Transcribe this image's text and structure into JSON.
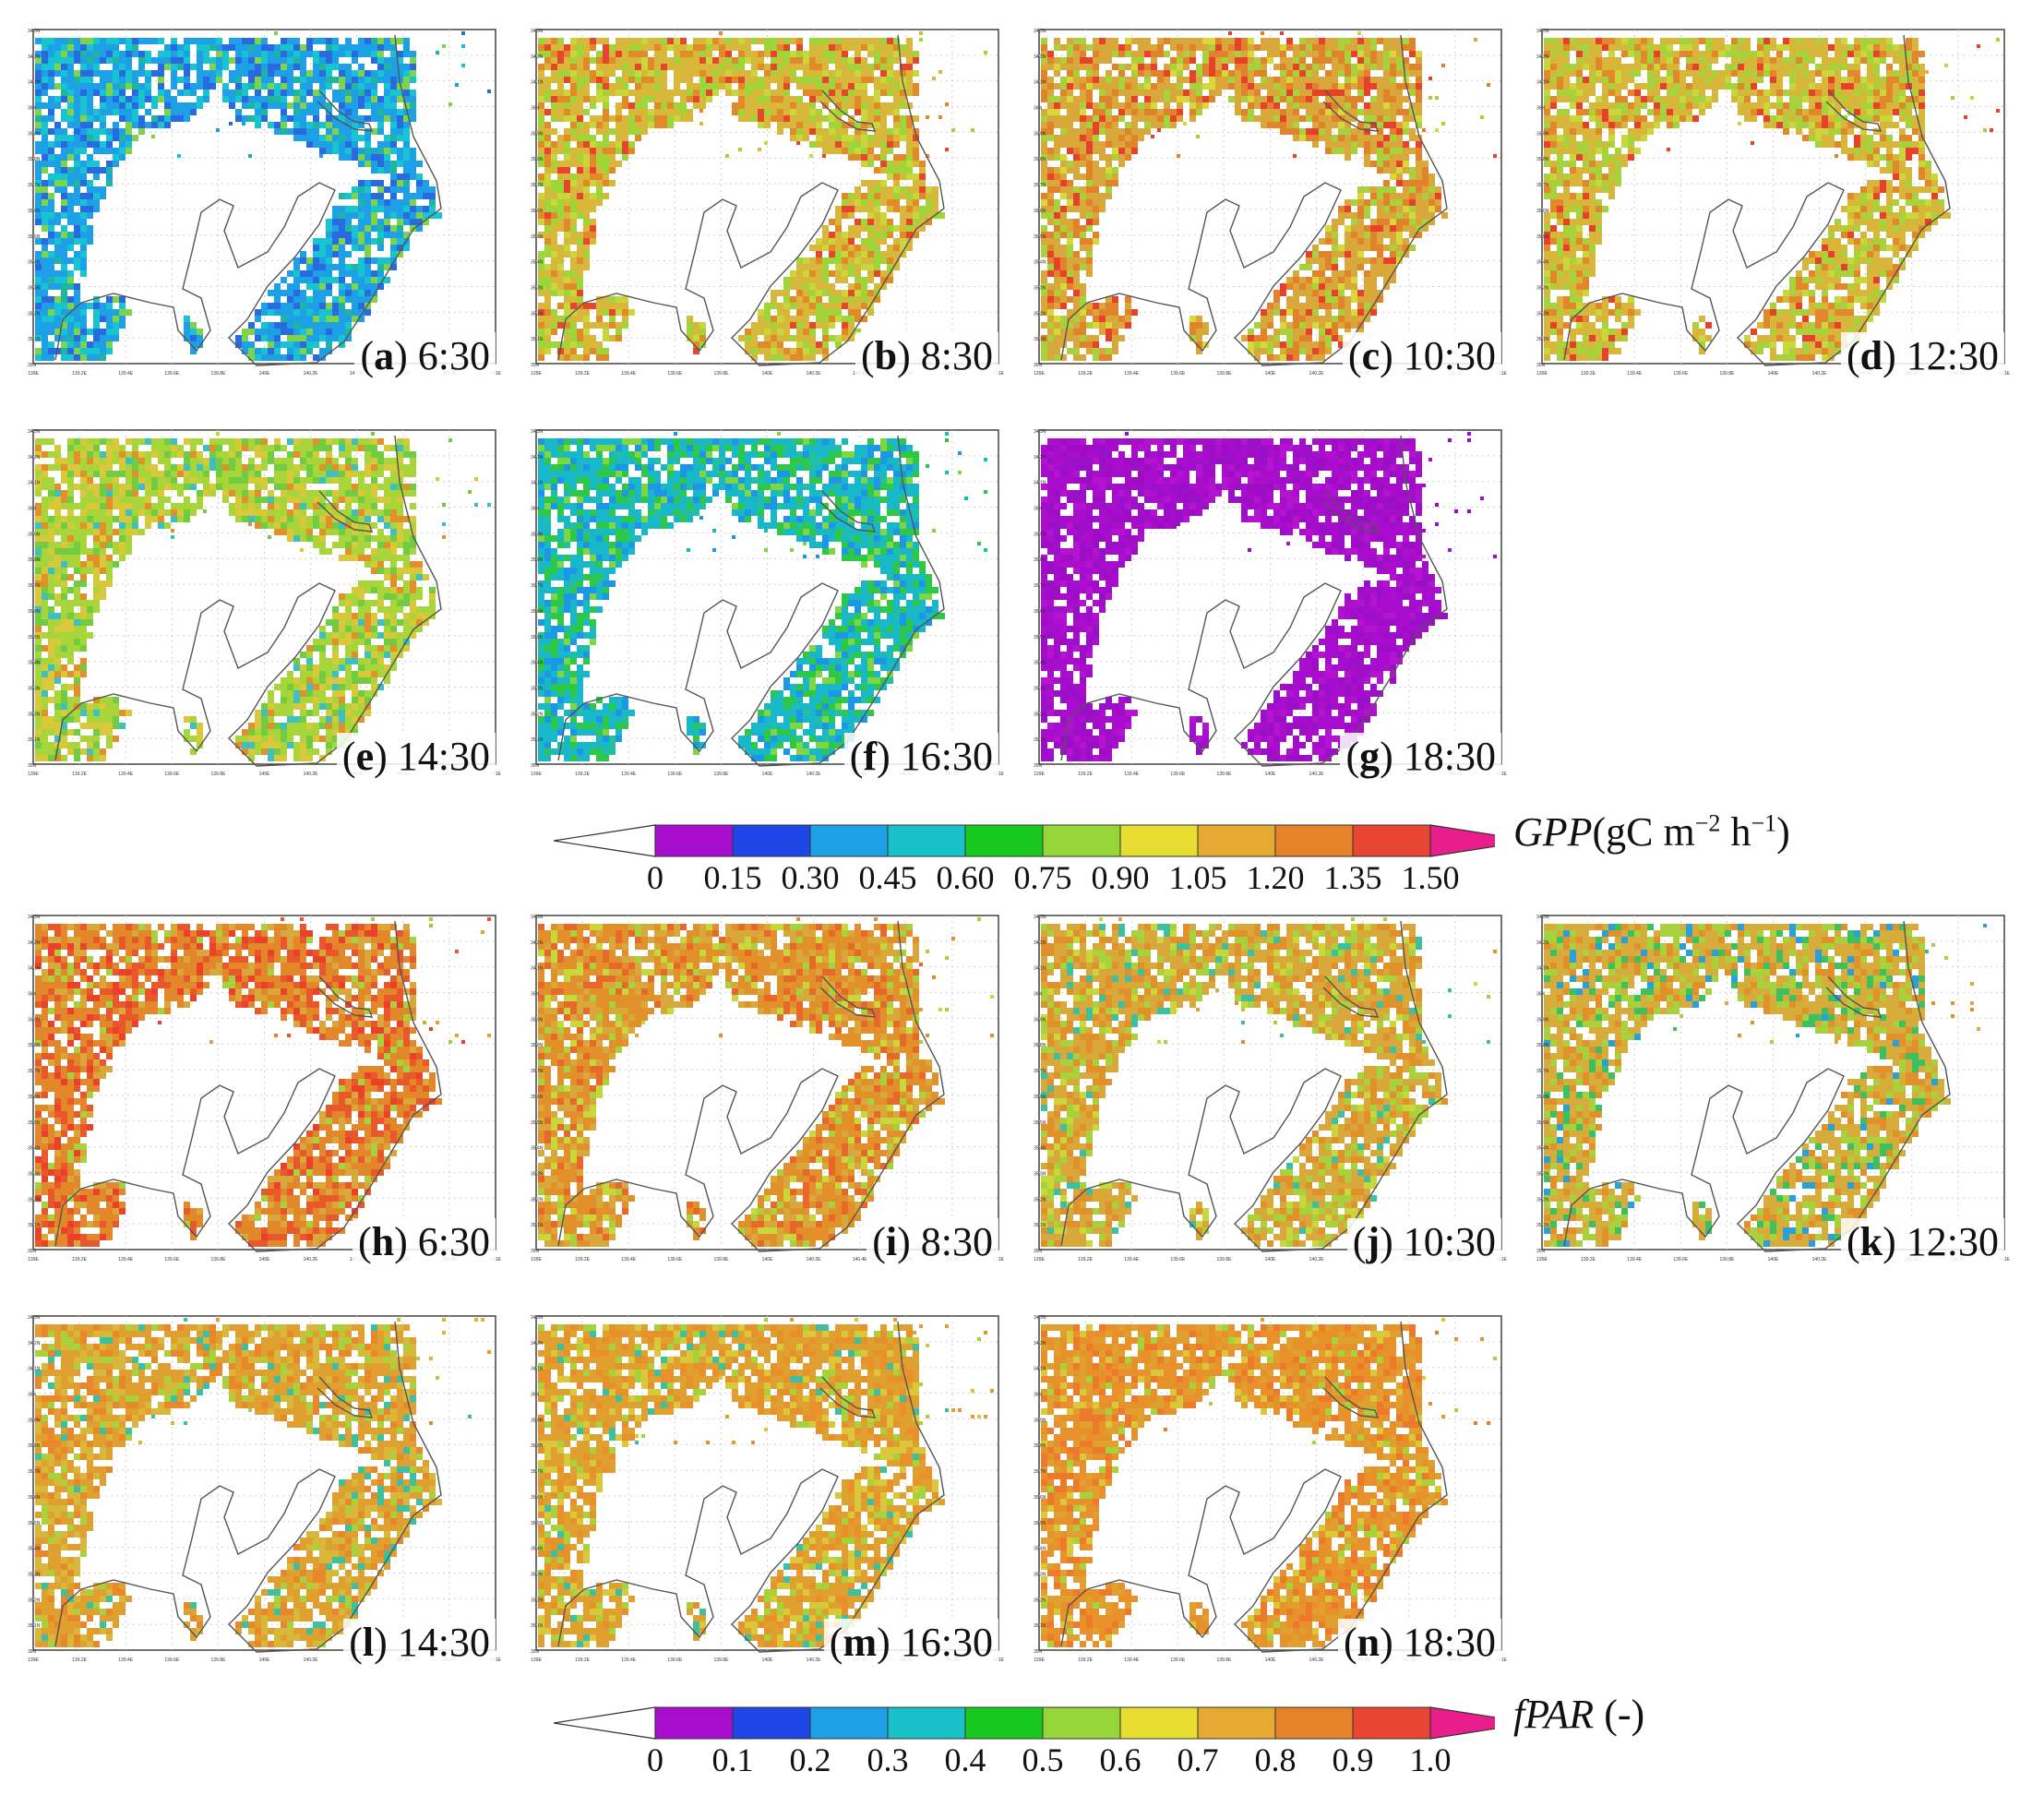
{
  "map_axes": {
    "lon_ticks": [
      "139E",
      "139.2E",
      "139.4E",
      "139.6E",
      "139.8E",
      "140E",
      "140.2E",
      "140.4E",
      "140.6E",
      "140.8E",
      "141E"
    ],
    "lat_ticks": [
      "34.3N",
      "34.2N",
      "34.1N",
      "36N",
      "35.9N",
      "35.8N",
      "35.7N",
      "35.6N",
      "35.5N",
      "35.4N",
      "35.3N",
      "35.2N",
      "35.1N",
      "35N"
    ]
  },
  "gpp_panels": [
    {
      "letter": "a",
      "time": "6:30",
      "palette": [
        "#1ea0e6",
        "#18c4d0",
        "#2a6ae0",
        "#7dd44a",
        "#1fb6a0"
      ]
    },
    {
      "letter": "b",
      "time": "8:30",
      "palette": [
        "#d8b83a",
        "#9ed63a",
        "#e28a28",
        "#c8d83a",
        "#e8462c"
      ]
    },
    {
      "letter": "c",
      "time": "10:30",
      "palette": [
        "#d8a83a",
        "#e2822a",
        "#a8d23c",
        "#e8402a",
        "#d8d83a"
      ]
    },
    {
      "letter": "d",
      "time": "12:30",
      "palette": [
        "#d8b63a",
        "#a8d23c",
        "#e2882a",
        "#c8d83a",
        "#e8402a"
      ]
    },
    {
      "letter": "e",
      "time": "14:30",
      "palette": [
        "#a8d63a",
        "#d8c83a",
        "#70cc40",
        "#e2902a",
        "#3ec0c0"
      ]
    },
    {
      "letter": "f",
      "time": "16:30",
      "palette": [
        "#18b8c8",
        "#2ec848",
        "#1c96e6",
        "#7ed640",
        "#20c0a0"
      ]
    },
    {
      "letter": "g",
      "time": "18:30",
      "palette": [
        "#a80ccc",
        "#9a10c8",
        "#b414d0",
        "#a00cc4",
        "#ac10cc"
      ]
    }
  ],
  "fpar_panels": [
    {
      "letter": "h",
      "time": "6:30",
      "palette": [
        "#e2882a",
        "#e8582a",
        "#d8a83a",
        "#ec402a",
        "#a8d23c"
      ]
    },
    {
      "letter": "i",
      "time": "8:30",
      "palette": [
        "#e2902a",
        "#d8a83a",
        "#e8682a",
        "#c8d83a",
        "#a8d23c"
      ]
    },
    {
      "letter": "j",
      "time": "10:30",
      "palette": [
        "#d8a83a",
        "#e2902a",
        "#a8d23c",
        "#c8d83a",
        "#3cc0a0"
      ]
    },
    {
      "letter": "k",
      "time": "12:30",
      "palette": [
        "#d8ac3a",
        "#a8d23c",
        "#e2902a",
        "#3cc060",
        "#2aa0d8"
      ]
    },
    {
      "letter": "l",
      "time": "14:30",
      "palette": [
        "#e0a030",
        "#d8b83a",
        "#e8882a",
        "#a8d23c",
        "#3cc0a0"
      ]
    },
    {
      "letter": "m",
      "time": "16:30",
      "palette": [
        "#e0a030",
        "#e8902a",
        "#d8c83a",
        "#a8d23c",
        "#3cc0a0"
      ]
    },
    {
      "letter": "n",
      "time": "18:30",
      "palette": [
        "#e8902a",
        "#e0a030",
        "#ec7a2a",
        "#d8c83a",
        "#a8d23c"
      ]
    }
  ],
  "gpp_colorbar": {
    "ticks": [
      "0",
      "0.15",
      "0.30",
      "0.45",
      "0.60",
      "0.75",
      "0.90",
      "1.05",
      "1.20",
      "1.35",
      "1.50"
    ],
    "variable": "GPP",
    "unit_prefix": "(gC m",
    "unit_exp1": "−2",
    "unit_mid": " h",
    "unit_exp2": "−1",
    "unit_suffix": ")"
  },
  "fpar_colorbar": {
    "ticks": [
      "0",
      "0.1",
      "0.2",
      "0.3",
      "0.4",
      "0.5",
      "0.6",
      "0.7",
      "0.8",
      "0.9",
      "1.0"
    ],
    "variable": "fPAR",
    "unit": " (-)"
  },
  "colorbar_colors": [
    "#a70dcd",
    "#1e46e6",
    "#1ea0e6",
    "#18c0c8",
    "#18c81e",
    "#96d63a",
    "#e6dc32",
    "#e6aa32",
    "#e68228",
    "#e84632"
  ],
  "colorbar_under": "#ffffff",
  "colorbar_over": "#e81e8c"
}
